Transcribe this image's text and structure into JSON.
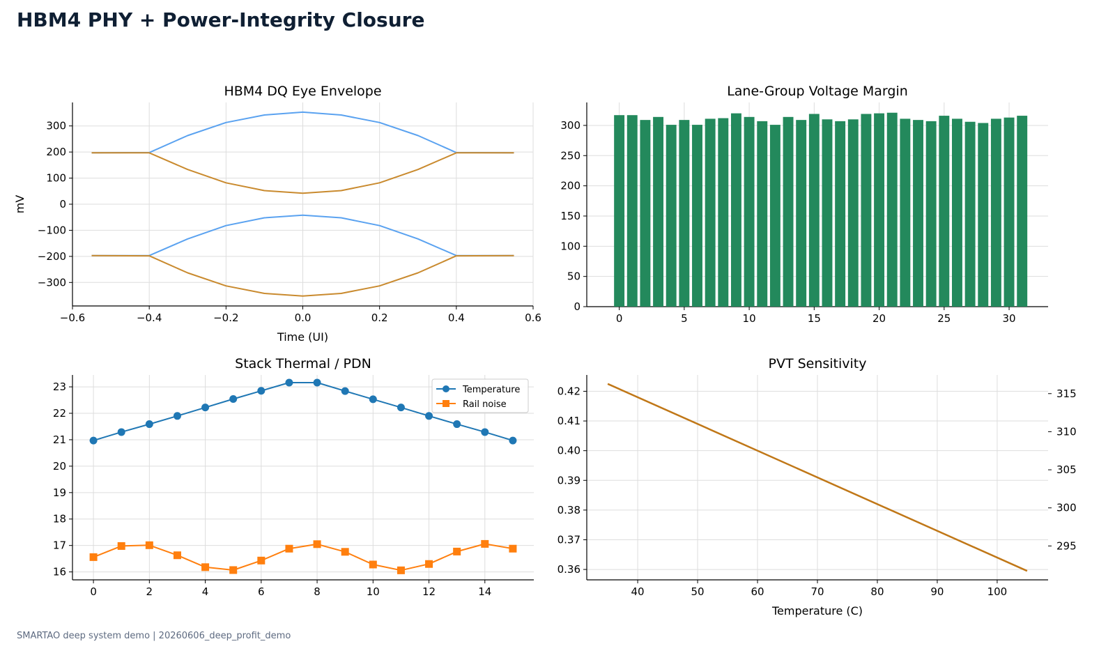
{
  "page": {
    "title": "HBM4 PHY + Power-Integrity Closure",
    "footer": "SMARTAO deep system demo | 20260606_deep_profit_demo"
  },
  "colors": {
    "eye_blue": "#5aa2f0",
    "eye_orange": "#c98a2e",
    "bar_green": "#23895c",
    "temp_blue": "#1f77b4",
    "noise_orange": "#ff7f0e",
    "pvt_line": "#c07717",
    "grid": "#dddddd"
  },
  "chart_data": [
    {
      "id": "eye",
      "type": "line",
      "title": "HBM4 DQ Eye Envelope",
      "xlabel": "Time (UI)",
      "ylabel": "mV",
      "xlim": [
        -0.6,
        0.6
      ],
      "ylim": [
        -390,
        390
      ],
      "xticks": [
        -0.6,
        -0.4,
        -0.2,
        0.0,
        0.2,
        0.4,
        0.6
      ],
      "xtick_labels": [
        "−0.6",
        "−0.4",
        "−0.2",
        "0.0",
        "0.2",
        "0.4",
        "0.6"
      ],
      "yticks": [
        300,
        200,
        100,
        0,
        -100,
        -200,
        -300
      ],
      "ytick_labels": [
        "300",
        "200",
        "100",
        "0",
        "−100",
        "−200",
        "−300"
      ],
      "grid": true,
      "series": [
        {
          "color_key": "eye_blue",
          "x": [
            -0.55,
            -0.4,
            -0.3,
            -0.2,
            -0.1,
            0.0,
            0.1,
            0.2,
            0.3,
            0.4,
            0.55
          ],
          "values": [
            197,
            198,
            263,
            313,
            342,
            353,
            342,
            313,
            263,
            198,
            197
          ]
        },
        {
          "color_key": "eye_orange",
          "x": [
            -0.55,
            -0.4,
            -0.3,
            -0.2,
            -0.1,
            0.0,
            0.1,
            0.2,
            0.3,
            0.4,
            0.55
          ],
          "values": [
            197,
            197,
            133,
            82,
            52,
            42,
            52,
            82,
            133,
            197,
            197
          ]
        },
        {
          "color_key": "eye_blue",
          "x": [
            -0.55,
            -0.4,
            -0.3,
            -0.2,
            -0.1,
            0.0,
            0.1,
            0.2,
            0.3,
            0.4,
            0.55
          ],
          "values": [
            -197,
            -197,
            -133,
            -82,
            -52,
            -42,
            -52,
            -82,
            -133,
            -197,
            -197
          ]
        },
        {
          "color_key": "eye_orange",
          "x": [
            -0.55,
            -0.4,
            -0.3,
            -0.2,
            -0.1,
            0.0,
            0.1,
            0.2,
            0.3,
            0.4,
            0.55
          ],
          "values": [
            -197,
            -198,
            -263,
            -313,
            -342,
            -352,
            -342,
            -313,
            -263,
            -198,
            -197
          ]
        }
      ]
    },
    {
      "id": "margin",
      "type": "bar",
      "title": "Lane-Group Voltage Margin",
      "xlim": [
        -2.5,
        33
      ],
      "ylim": [
        0,
        338
      ],
      "xticks": [
        0,
        5,
        10,
        15,
        20,
        25,
        30
      ],
      "xtick_labels": [
        "0",
        "5",
        "10",
        "15",
        "20",
        "25",
        "30"
      ],
      "yticks": [
        0,
        50,
        100,
        150,
        200,
        250,
        300
      ],
      "ytick_labels": [
        "0",
        "50",
        "100",
        "150",
        "200",
        "250",
        "300"
      ],
      "grid": true,
      "color_key": "bar_green",
      "categories": [
        0,
        1,
        2,
        3,
        4,
        5,
        6,
        7,
        8,
        9,
        10,
        11,
        12,
        13,
        14,
        15,
        16,
        17,
        18,
        19,
        20,
        21,
        22,
        23,
        24,
        25,
        26,
        27,
        28,
        29,
        30,
        31
      ],
      "values": [
        317,
        317,
        309,
        314,
        301,
        309,
        301,
        311,
        312,
        320,
        314,
        307,
        301,
        314,
        309,
        319,
        310,
        307,
        310,
        319,
        320,
        321,
        311,
        309,
        307,
        316,
        311,
        306,
        304,
        311,
        313,
        316
      ]
    },
    {
      "id": "thermal",
      "type": "line",
      "title": "Stack Thermal / PDN",
      "xlim": [
        -0.75,
        15.75
      ],
      "ylim": [
        15.7,
        23.45
      ],
      "xticks": [
        0,
        2,
        4,
        6,
        8,
        10,
        12,
        14
      ],
      "xtick_labels": [
        "0",
        "2",
        "4",
        "6",
        "8",
        "10",
        "12",
        "14"
      ],
      "yticks": [
        16,
        17,
        18,
        19,
        20,
        21,
        22,
        23
      ],
      "ytick_labels": [
        "16",
        "17",
        "18",
        "19",
        "20",
        "21",
        "22",
        "23"
      ],
      "grid": true,
      "legend_position": "top-right",
      "series": [
        {
          "name": "Temperature",
          "marker": "circle",
          "color_key": "temp_blue",
          "x": [
            0,
            1,
            2,
            3,
            4,
            5,
            6,
            7,
            8,
            9,
            10,
            11,
            12,
            13,
            14,
            15
          ],
          "values": [
            20.97,
            21.29,
            21.59,
            21.9,
            22.22,
            22.54,
            22.85,
            23.16,
            23.16,
            22.84,
            22.53,
            22.22,
            21.9,
            21.59,
            21.29,
            20.97
          ]
        },
        {
          "name": "Rail noise",
          "marker": "square",
          "color_key": "noise_orange",
          "x": [
            0,
            1,
            2,
            3,
            4,
            5,
            6,
            7,
            8,
            9,
            10,
            11,
            12,
            13,
            14,
            15
          ],
          "values": [
            16.56,
            16.98,
            17.01,
            16.63,
            16.18,
            16.07,
            16.43,
            16.88,
            17.05,
            16.76,
            16.28,
            16.06,
            16.3,
            16.77,
            17.06,
            16.88
          ]
        }
      ]
    },
    {
      "id": "pvt",
      "type": "line",
      "title": "PVT Sensitivity",
      "xlabel": "Temperature (C)",
      "xlim": [
        31.5,
        108.5
      ],
      "ylim": [
        0.3565,
        0.4255
      ],
      "y2lim": [
        290.55,
        317.45
      ],
      "xticks": [
        40,
        50,
        60,
        70,
        80,
        90,
        100
      ],
      "xtick_labels": [
        "40",
        "50",
        "60",
        "70",
        "80",
        "90",
        "100"
      ],
      "yticks": [
        0.42,
        0.41,
        0.4,
        0.39,
        0.38,
        0.37,
        0.36
      ],
      "ytick_labels": [
        "0.42",
        "0.41",
        "0.40",
        "0.39",
        "0.38",
        "0.37",
        "0.36"
      ],
      "y2ticks": [
        315,
        310,
        305,
        300,
        295
      ],
      "y2tick_labels": [
        "315",
        "310",
        "305",
        "300",
        "295"
      ],
      "grid": true,
      "color_key": "pvt_line",
      "x": [
        35,
        105
      ],
      "values": [
        0.4225,
        0.3595
      ]
    }
  ]
}
